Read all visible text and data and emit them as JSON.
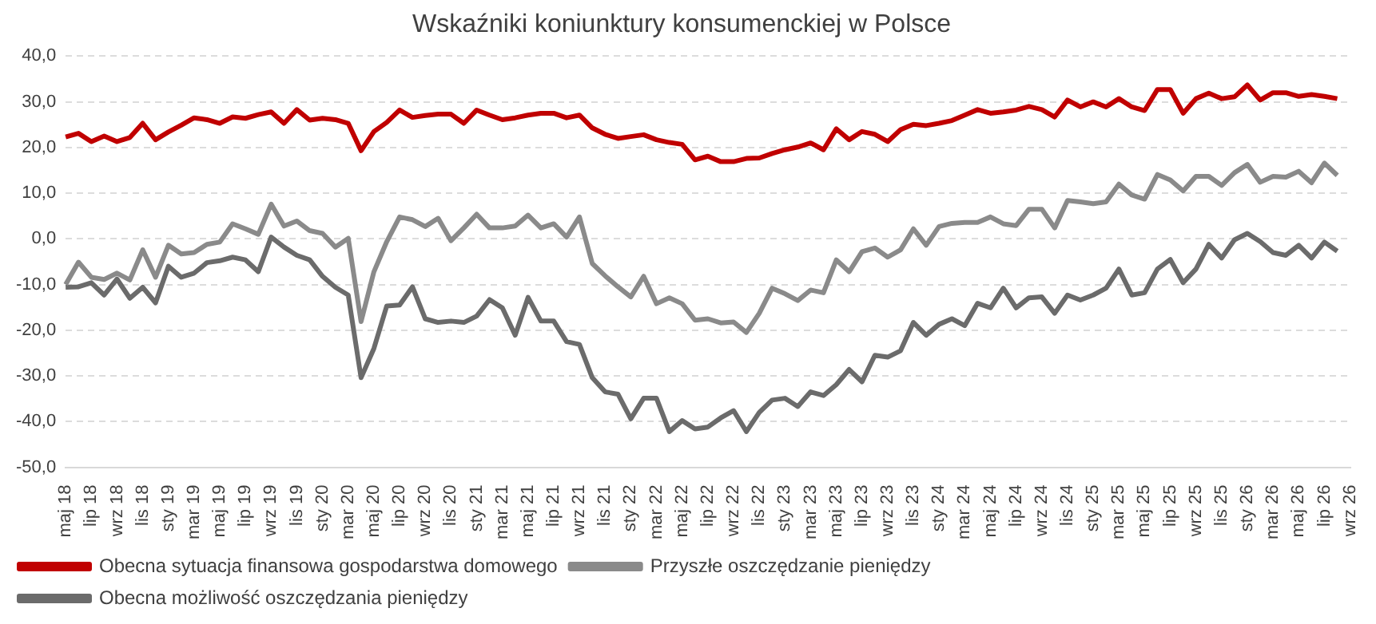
{
  "chart_data": {
    "type": "line",
    "title": "Wskaźniki koniunktury konsumenckiej w Polsce",
    "categories": [
      "maj 18",
      null,
      "lip 18",
      null,
      "wrz 18",
      null,
      "lis 18",
      null,
      "sty 19",
      null,
      "mar 19",
      null,
      "maj 19",
      null,
      "lip 19",
      null,
      "wrz 19",
      null,
      "lis 19",
      null,
      "sty 20",
      null,
      "mar 20",
      null,
      "maj 20",
      null,
      "lip 20",
      null,
      "wrz 20",
      null,
      "lis 20",
      null,
      "sty 21",
      null,
      "mar 21",
      null,
      "maj 21",
      null,
      "lip 21",
      null,
      "wrz 21",
      null,
      "lis 21",
      null,
      "sty 22",
      null,
      "mar 22",
      null,
      "maj 22",
      null,
      "lip 22",
      null,
      "wrz 22",
      null,
      "lis 22",
      null,
      "sty 23",
      null,
      "mar 23",
      null,
      "maj 23",
      null,
      "lip 23",
      null,
      "wrz 23",
      null,
      "lis 23",
      null,
      "sty 24",
      null,
      "mar 24",
      null,
      "maj 24",
      null,
      "lip 24",
      null,
      "wrz 24",
      null,
      "lis 24",
      null,
      "sty 25",
      null,
      "mar 25",
      null,
      "maj 25",
      null,
      "lip 25",
      null,
      "wrz 25",
      null,
      "lis 25",
      null,
      "sty 26",
      null,
      "mar 26",
      null,
      "maj 26",
      null,
      "lip 26",
      null,
      "wrz 26"
    ],
    "series": [
      {
        "name": "Obecna sytuacja finansowa gospodarstwa domowego",
        "color": "#c00000",
        "values": [
          22.3,
          23.1,
          21.3,
          22.5,
          21.3,
          22.2,
          25.3,
          21.7,
          23.4,
          24.9,
          26.5,
          26.1,
          25.3,
          26.7,
          26.4,
          27.2,
          27.8,
          25.3,
          28.3,
          26.0,
          26.4,
          26.1,
          25.3,
          19.3,
          23.5,
          25.5,
          28.2,
          26.6,
          27.0,
          27.3,
          27.3,
          25.3,
          28.2,
          27.1,
          26.1,
          26.5,
          27.1,
          27.5,
          27.5,
          26.5,
          27.1,
          24.3,
          22.9,
          22.0,
          22.4,
          22.8,
          21.7,
          21.1,
          20.7,
          17.3,
          18.1,
          16.9,
          16.9,
          17.6,
          17.7,
          18.7,
          19.5,
          20.1,
          21.0,
          19.5,
          24.1,
          21.7,
          23.5,
          22.9,
          21.3,
          23.9,
          25.1,
          24.8,
          25.3,
          25.9,
          27.1,
          28.3,
          27.5,
          27.8,
          28.2,
          29.0,
          28.3,
          26.7,
          30.4,
          28.9,
          30.0,
          28.9,
          30.7,
          28.9,
          28.1,
          32.7,
          32.7,
          27.5,
          30.7,
          31.9,
          30.7,
          31.1,
          33.7,
          30.4,
          32.0,
          32.0,
          31.2,
          31.6,
          31.2,
          30.7,
          null
        ]
      },
      {
        "name": "Przyszłe oszczędzanie pieniędzy",
        "color": "#8a8a8a",
        "values": [
          -10.0,
          -5.1,
          -8.4,
          -8.9,
          -7.5,
          -9.0,
          -2.4,
          -8.4,
          -1.4,
          -3.3,
          -3.0,
          -1.2,
          -0.7,
          3.3,
          2.2,
          1.0,
          7.6,
          2.8,
          3.9,
          1.8,
          1.2,
          -1.8,
          0.1,
          -18.1,
          -7.2,
          -0.6,
          4.8,
          4.2,
          2.7,
          4.5,
          -0.4,
          2.4,
          5.4,
          2.4,
          2.4,
          2.8,
          5.2,
          2.4,
          3.3,
          0.4,
          4.8,
          -5.4,
          -8.1,
          -10.5,
          -12.7,
          -8.2,
          -14.2,
          -12.9,
          -14.2,
          -17.8,
          -17.5,
          -18.4,
          -18.2,
          -20.5,
          -16.3,
          -10.8,
          -12.0,
          -13.5,
          -11.2,
          -11.8,
          -4.6,
          -7.2,
          -2.8,
          -2.0,
          -4.0,
          -2.4,
          2.2,
          -1.4,
          2.7,
          3.4,
          3.6,
          3.6,
          4.8,
          3.3,
          2.9,
          6.5,
          6.5,
          2.4,
          8.4,
          8.1,
          7.7,
          8.1,
          12.0,
          9.6,
          8.7,
          14.1,
          12.9,
          10.5,
          13.7,
          13.7,
          11.7,
          14.5,
          16.3,
          12.4,
          13.7,
          13.5,
          14.8,
          12.3,
          16.6,
          13.9,
          null
        ]
      },
      {
        "name": "Obecna możliwość oszczędzania pieniędzy",
        "color": "#6b6b6b",
        "values": [
          -10.6,
          -10.5,
          -9.6,
          -12.3,
          -8.8,
          -13.0,
          -10.6,
          -14.0,
          -6.0,
          -8.4,
          -7.5,
          -5.2,
          -4.8,
          -4.0,
          -4.6,
          -7.2,
          0.4,
          -1.8,
          -3.6,
          -4.6,
          -8.2,
          -10.6,
          -12.3,
          -30.4,
          -24.0,
          -14.7,
          -14.5,
          -10.5,
          -17.5,
          -18.3,
          -18.0,
          -18.3,
          -16.9,
          -13.3,
          -15.1,
          -21.1,
          -12.8,
          -18.0,
          -18.0,
          -22.5,
          -23.1,
          -30.4,
          -33.5,
          -34.0,
          -39.4,
          -34.9,
          -34.9,
          -42.2,
          -39.8,
          -41.6,
          -41.2,
          -39.2,
          -37.6,
          -42.2,
          -38.0,
          -35.3,
          -34.9,
          -36.7,
          -33.5,
          -34.3,
          -31.9,
          -28.6,
          -31.3,
          -25.5,
          -25.9,
          -24.5,
          -18.3,
          -21.1,
          -18.7,
          -17.5,
          -19.0,
          -14.1,
          -15.1,
          -10.8,
          -15.1,
          -12.9,
          -12.7,
          -16.3,
          -12.3,
          -13.4,
          -12.3,
          -10.8,
          -6.6,
          -12.3,
          -11.8,
          -6.6,
          -4.5,
          -9.6,
          -6.6,
          -1.2,
          -4.2,
          -0.2,
          1.2,
          -0.6,
          -3.0,
          -3.6,
          -1.4,
          -4.2,
          -0.7,
          -2.7,
          null
        ]
      }
    ],
    "ylim": [
      -50,
      40
    ],
    "yticks": [
      {
        "value": -50,
        "label": "-50,0"
      },
      {
        "value": -40,
        "label": "-40,0"
      },
      {
        "value": -30,
        "label": "-30,0"
      },
      {
        "value": -20,
        "label": "-20,0"
      },
      {
        "value": -10,
        "label": "-10,0"
      },
      {
        "value": 0,
        "label": "0,0"
      },
      {
        "value": 10,
        "label": "10,0"
      },
      {
        "value": 20,
        "label": "20,0"
      },
      {
        "value": 30,
        "label": "30,0"
      },
      {
        "value": 40,
        "label": "40,0"
      }
    ],
    "grid": "y",
    "legend": "bottom"
  }
}
